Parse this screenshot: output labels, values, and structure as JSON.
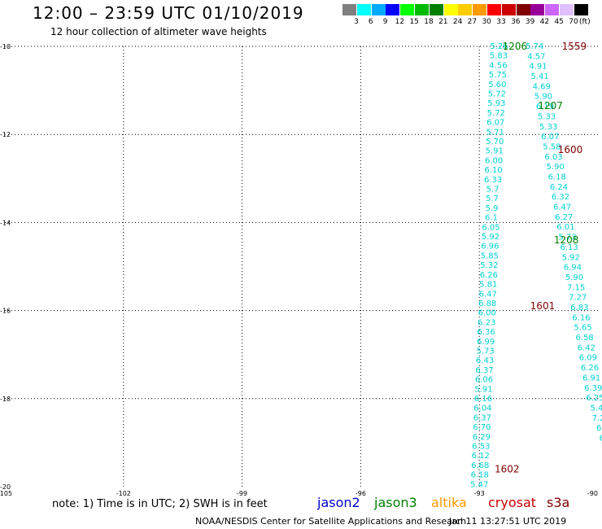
{
  "header": {
    "title": "12:00 – 23:59 UTC 01/10/2019",
    "subtitle": "12 hour collection of altimeter wave heights"
  },
  "legend": {
    "unit": "(ft)",
    "bins": [
      {
        "label": "3",
        "color": "#7f7f7f"
      },
      {
        "label": "6",
        "color": "#00ffff"
      },
      {
        "label": "9",
        "color": "#00aaff"
      },
      {
        "label": "12",
        "color": "#0000ff"
      },
      {
        "label": "15",
        "color": "#00ff00"
      },
      {
        "label": "18",
        "color": "#00bb00"
      },
      {
        "label": "21",
        "color": "#007f00"
      },
      {
        "label": "24",
        "color": "#ffff00"
      },
      {
        "label": "27",
        "color": "#ffcc00"
      },
      {
        "label": "30",
        "color": "#ff9900"
      },
      {
        "label": "33",
        "color": "#ff0000"
      },
      {
        "label": "36",
        "color": "#cc0000"
      },
      {
        "label": "39",
        "color": "#800000"
      },
      {
        "label": "42",
        "color": "#990099"
      },
      {
        "label": "45",
        "color": "#cc66ff"
      },
      {
        "label": "70",
        "color": "#e0c0ff"
      },
      {
        "label": "",
        "color": "#000000"
      }
    ]
  },
  "map": {
    "lat_labels": [
      "-10",
      "-12",
      "-14",
      "-16",
      "-18",
      "-20"
    ],
    "lon_labels": [
      "-105",
      "-102",
      "-99",
      "-96",
      "-93",
      "-90"
    ],
    "lat_range": [
      -20,
      -10
    ],
    "lon_range": [
      -105,
      -90
    ],
    "colors": {
      "swh": "#00d0d0",
      "jason3": "#008000",
      "cryosat": "#7f0000"
    },
    "time_labels": [
      {
        "text": "1206",
        "sat": "jason3",
        "lon": -92.1,
        "lat": -10.0
      },
      {
        "text": "1559",
        "sat": "cryosat",
        "lon": -90.6,
        "lat": -10.0
      },
      {
        "text": "1207",
        "sat": "jason3",
        "lon": -91.2,
        "lat": -11.35
      },
      {
        "text": "1600",
        "sat": "cryosat",
        "lon": -90.7,
        "lat": -12.35
      },
      {
        "text": "1208",
        "sat": "jason3",
        "lon": -90.8,
        "lat": -14.4
      },
      {
        "text": "1601",
        "sat": "cryosat",
        "lon": -91.4,
        "lat": -15.9
      },
      {
        "text": "1602",
        "sat": "cryosat",
        "lon": -92.3,
        "lat": -19.6
      }
    ],
    "track_desc": {
      "values": [
        "5.26",
        "5.83",
        "4.56",
        "5.75",
        "5.60",
        "5.72",
        "5.93",
        "5.72",
        "6.07",
        "5.71",
        "5.70",
        "5.91",
        "6.00",
        "6.10",
        "6.33",
        "5.7",
        "5.7",
        "5.9",
        "6.1",
        "6.05",
        "5.92",
        "6.96",
        "5.85",
        "5.32",
        "6.26",
        "5.81",
        "6.47",
        "6.88",
        "6.00",
        "6.23",
        "6.36",
        "6.99",
        "5.73",
        "6.43",
        "6.37",
        "6.06",
        "5.91",
        "6.16",
        "6.04",
        "6.37",
        "6.70",
        "6.29",
        "6.53",
        "6.12",
        "6.68",
        "6.18",
        "5.47"
      ],
      "lon_start": -92.5,
      "lat_start": -10.0,
      "lon_end": -93.0,
      "lat_end": -19.95
    },
    "track_asc": {
      "values": [
        "5.74",
        "4.57",
        "4.91",
        "5.41",
        "4.69",
        "5.90",
        "6.19",
        "5.33",
        "5.33",
        "6.07",
        "5.58",
        "6.03",
        "5.90",
        "6.18",
        "6.24",
        "6.32",
        "6.47",
        "6.27",
        "6.01",
        "5.73",
        "6.13",
        "5.92",
        "6.94",
        "5.90",
        "7.15",
        "7.27",
        "6.83",
        "6.16",
        "5.65",
        "6.58",
        "6.42",
        "6.09",
        "6.26",
        "6.91",
        "6.39",
        "6.25",
        "5.4",
        "7.2",
        "6.",
        "6"
      ],
      "lon_start": -91.6,
      "lat_start": -10.0,
      "lon_end": -89.9,
      "lat_end": -18.9
    }
  },
  "footer": {
    "note": "note: 1) Time is in UTC; 2) SWH is in feet",
    "satellites": [
      {
        "name": "jason2",
        "color": "#0000cc"
      },
      {
        "name": "jason3",
        "color": "#008000"
      },
      {
        "name": "altika",
        "color": "#ff9900"
      },
      {
        "name": "cryosat",
        "color": "#cc0000"
      },
      {
        "name": "s3a",
        "color": "#800000"
      }
    ],
    "credit": "NOAA/NESDIS Center for Satellite Applications and Research",
    "timestamp": "Jan 11 13:27:51 UTC 2019"
  }
}
